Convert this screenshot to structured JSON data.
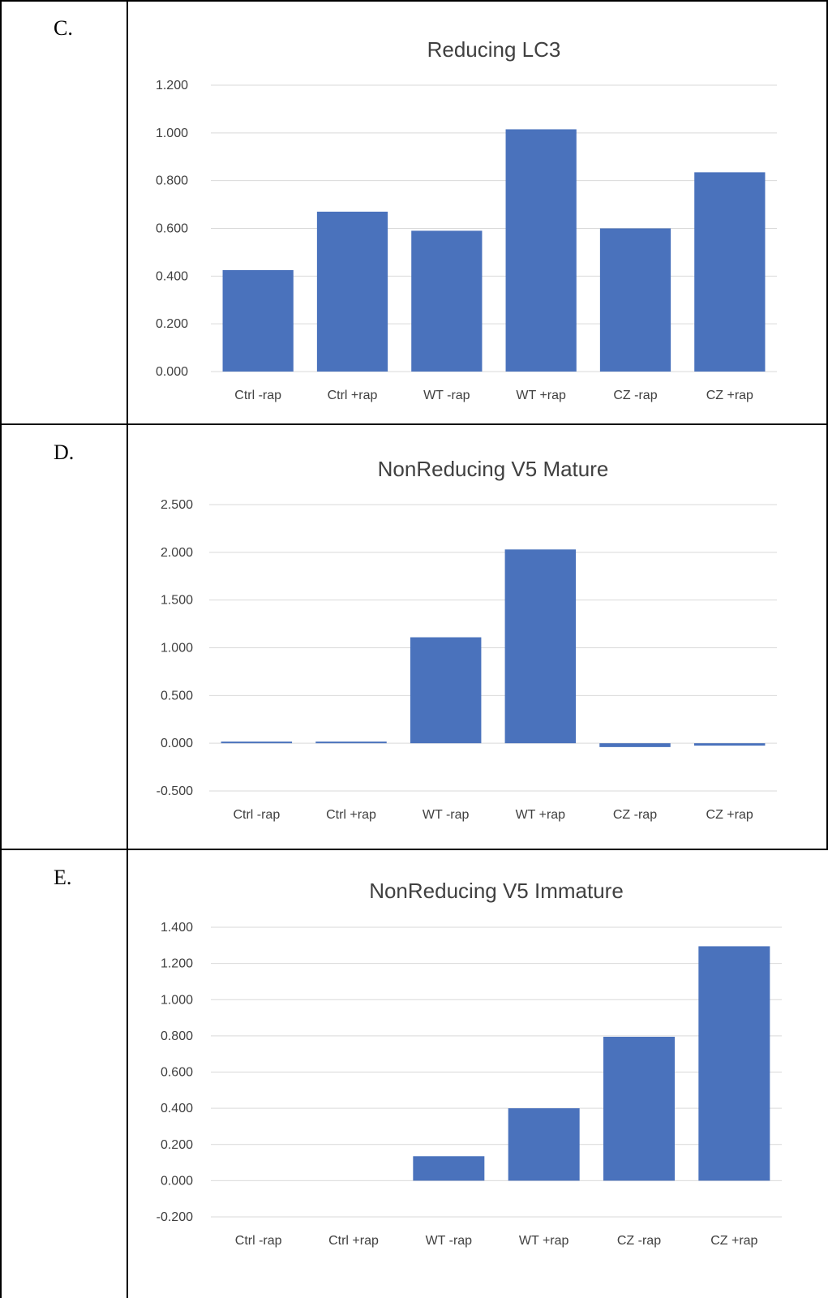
{
  "panels": [
    {
      "label": "C."
    },
    {
      "label": "D."
    },
    {
      "label": "E."
    }
  ],
  "colors": {
    "bar": "#4a72bc",
    "grid": "#d9d9d9",
    "text": "#404040",
    "border": "#000000"
  },
  "chart_data": [
    {
      "type": "bar",
      "title": "Reducing LC3",
      "categories": [
        "Ctrl -rap",
        "Ctrl +rap",
        "WT -rap",
        "WT +rap",
        "CZ -rap",
        "CZ +rap"
      ],
      "values": [
        0.425,
        0.67,
        0.59,
        1.015,
        0.6,
        0.835
      ],
      "yticks": [
        "0.000",
        "0.200",
        "0.400",
        "0.600",
        "0.800",
        "1.000",
        "1.200"
      ],
      "ylim": [
        0,
        1.2
      ],
      "grid": true
    },
    {
      "type": "bar",
      "title": "NonReducing V5 Mature",
      "categories": [
        "Ctrl -rap",
        "Ctrl +rap",
        "WT -rap",
        "WT +rap",
        "CZ -rap",
        "CZ +rap"
      ],
      "values": [
        0.005,
        0.015,
        1.11,
        2.03,
        -0.04,
        -0.025
      ],
      "yticks": [
        "-0.500",
        "0.000",
        "0.500",
        "1.000",
        "1.500",
        "2.000",
        "2.500"
      ],
      "ylim": [
        -0.5,
        2.5
      ],
      "grid": true
    },
    {
      "type": "bar",
      "title": "NonReducing V5 Immature",
      "categories": [
        "Ctrl -rap",
        "Ctrl +rap",
        "WT -rap",
        "WT +rap",
        "CZ -rap",
        "CZ +rap"
      ],
      "values": [
        0.0,
        0.0,
        0.135,
        0.4,
        0.795,
        1.295
      ],
      "yticks": [
        "-0.200",
        "0.000",
        "0.200",
        "0.400",
        "0.600",
        "0.800",
        "1.000",
        "1.200",
        "1.400"
      ],
      "ylim": [
        -0.2,
        1.4
      ],
      "grid": true
    }
  ]
}
